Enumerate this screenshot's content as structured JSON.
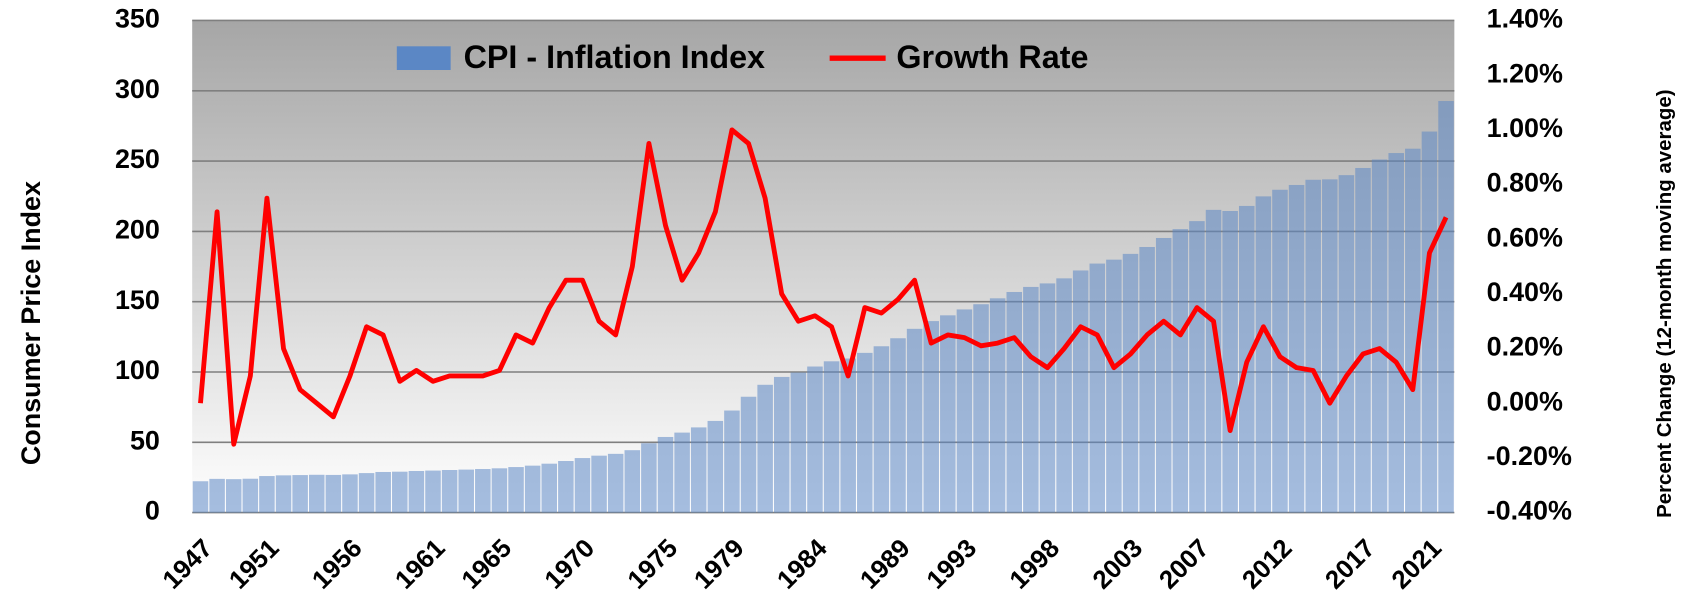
{
  "chart_data": {
    "type": "bar_line",
    "y_label": "Consumer Price Index",
    "y2_label": "Percent Change (12-month moving average)",
    "categories": [
      "1947",
      null,
      null,
      null,
      "1951",
      null,
      null,
      null,
      null,
      "1956",
      null,
      null,
      null,
      null,
      "1961",
      null,
      null,
      null,
      "1965",
      null,
      null,
      null,
      null,
      "1970",
      null,
      null,
      null,
      null,
      "1975",
      null,
      null,
      null,
      "1979",
      null,
      null,
      null,
      null,
      "1984",
      null,
      null,
      null,
      null,
      "1989",
      null,
      null,
      null,
      "1993",
      null,
      null,
      null,
      null,
      "1998",
      null,
      null,
      null,
      null,
      "2003",
      null,
      null,
      null,
      "2007",
      null,
      null,
      null,
      null,
      "2012",
      null,
      null,
      null,
      null,
      "2017",
      null,
      null,
      null,
      "2021",
      null
    ],
    "series": [
      {
        "name": "CPI - Inflation Index",
        "type": "bar",
        "color": "#5b87c5",
        "axis": "y",
        "values": [
          22.3,
          24.0,
          23.8,
          24.1,
          26.0,
          26.5,
          26.7,
          26.9,
          26.8,
          27.2,
          28.1,
          28.9,
          29.1,
          29.6,
          29.9,
          30.3,
          30.6,
          31.0,
          31.5,
          32.4,
          33.4,
          34.8,
          36.7,
          38.8,
          40.5,
          41.8,
          44.4,
          49.3,
          53.8,
          56.9,
          60.6,
          65.2,
          72.6,
          82.4,
          90.9,
          96.5,
          99.6,
          103.9,
          107.6,
          109.6,
          113.6,
          118.3,
          124.0,
          130.7,
          136.2,
          140.3,
          144.5,
          148.2,
          152.4,
          156.9,
          160.5,
          163.0,
          166.6,
          172.2,
          177.1,
          179.9,
          184.0,
          188.9,
          195.3,
          201.6,
          207.3,
          215.3,
          214.5,
          218.1,
          224.9,
          229.6,
          233.0,
          236.7,
          237.0,
          240.0,
          245.1,
          251.1,
          255.7,
          258.8,
          271.0,
          292.7
        ]
      },
      {
        "name": "Growth Rate",
        "type": "line",
        "color": "#ff0000",
        "axis": "y2",
        "values": [
          0.0,
          0.7,
          -0.15,
          0.1,
          0.75,
          0.2,
          0.05,
          0.0,
          -0.05,
          0.1,
          0.28,
          0.25,
          0.08,
          0.12,
          0.08,
          0.1,
          0.1,
          0.1,
          0.12,
          0.25,
          0.22,
          0.35,
          0.45,
          0.45,
          0.3,
          0.25,
          0.5,
          0.95,
          0.65,
          0.45,
          0.55,
          0.7,
          1.0,
          0.95,
          0.75,
          0.4,
          0.3,
          0.32,
          0.28,
          0.1,
          0.35,
          0.33,
          0.38,
          0.45,
          0.22,
          0.25,
          0.24,
          0.21,
          0.22,
          0.24,
          0.17,
          0.13,
          0.2,
          0.28,
          0.25,
          0.13,
          0.18,
          0.25,
          0.3,
          0.25,
          0.35,
          0.3,
          -0.1,
          0.15,
          0.28,
          0.17,
          0.13,
          0.12,
          0.0,
          0.1,
          0.18,
          0.2,
          0.15,
          0.05,
          0.55,
          0.68
        ]
      }
    ],
    "ylim": [
      0,
      350
    ],
    "yticks": [
      0,
      50,
      100,
      150,
      200,
      250,
      300,
      350
    ],
    "y2lim": [
      -0.4,
      1.4
    ],
    "y2ticks": [
      {
        "value": -0.4,
        "label": "-0.40%"
      },
      {
        "value": -0.2,
        "label": "-0.20%"
      },
      {
        "value": 0,
        "label": "0.00%"
      },
      {
        "value": 0.2,
        "label": "0.20%"
      },
      {
        "value": 0.4,
        "label": "0.40%"
      },
      {
        "value": 0.6,
        "label": "0.60%"
      },
      {
        "value": 0.8,
        "label": "0.80%"
      },
      {
        "value": 1.0,
        "label": "1.00%"
      },
      {
        "value": 1.2,
        "label": "1.20%"
      },
      {
        "value": 1.4,
        "label": "1.40%"
      }
    ],
    "grid": true,
    "legend": "top"
  }
}
